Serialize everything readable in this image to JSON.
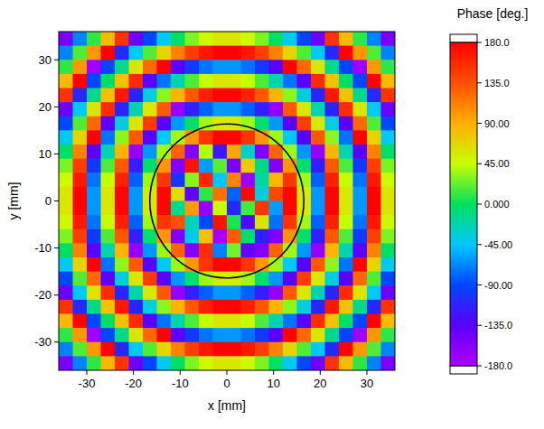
{
  "chart_data": {
    "type": "heatmap",
    "xlabel": "x [mm]",
    "ylabel": "y [mm]",
    "xlim": [
      -36,
      36
    ],
    "ylim": [
      -36,
      36
    ],
    "xticks": [
      -30,
      -20,
      -10,
      0,
      10,
      20,
      30
    ],
    "yticks": [
      -30,
      -20,
      -10,
      0,
      10,
      20,
      30
    ],
    "x": [
      -34.5,
      -31.5,
      -28.5,
      -25.5,
      -22.5,
      -19.5,
      -16.5,
      -13.5,
      -10.5,
      -7.5,
      -4.5,
      -1.5,
      1.5,
      4.5,
      7.5,
      10.5,
      13.5,
      16.5,
      19.5,
      22.5,
      25.5,
      28.5,
      31.5,
      34.5
    ],
    "y": [
      34.5,
      31.5,
      28.5,
      25.5,
      22.5,
      19.5,
      16.5,
      13.5,
      10.5,
      7.5,
      4.5,
      1.5,
      -1.5,
      -4.5,
      -7.5,
      -10.5,
      -13.5,
      -16.5,
      -19.5,
      -22.5,
      -25.5,
      -28.5,
      -31.5,
      -34.5
    ],
    "values": [
      [
        -152,
        -69,
        10,
        84,
        152,
        -145,
        -90,
        -42,
        -3,
        28,
        48,
        59,
        59,
        48,
        28,
        -3,
        -42,
        -90,
        -145,
        152,
        84,
        10,
        -69,
        -152
      ],
      [
        -69,
        18,
        101,
        179,
        -108,
        -42,
        18,
        69,
        112,
        145,
        167,
        179,
        179,
        167,
        145,
        112,
        69,
        18,
        -42,
        -108,
        179,
        101,
        18,
        -69
      ],
      [
        10,
        101,
        -172,
        -90,
        -13,
        59,
        123,
        179,
        -135,
        -99,
        -74,
        -62,
        -62,
        -74,
        -99,
        -135,
        179,
        123,
        59,
        -13,
        -90,
        -172,
        101,
        10
      ],
      [
        84,
        179,
        -90,
        -3,
        80,
        156,
        -135,
        -74,
        -23,
        17,
        44,
        58,
        58,
        44,
        17,
        -23,
        -74,
        -135,
        156,
        80,
        -3,
        -90,
        179,
        84
      ],
      [
        152,
        -108,
        -13,
        80,
        167,
        -111,
        -36,
        31,
        87,
        131,
        162,
        178,
        178,
        162,
        131,
        87,
        31,
        -36,
        -111,
        167,
        80,
        -13,
        -108,
        152
      ],
      [
        -145,
        -42,
        59,
        156,
        -111,
        -23,
        58,
        131,
        -166,
        -116,
        -81,
        -62,
        -62,
        -81,
        -116,
        -166,
        131,
        58,
        -23,
        -111,
        156,
        59,
        -42,
        -145
      ],
      [
        -90,
        18,
        123,
        -135,
        -36,
        58,
        147,
        -133,
        -62,
        -5,
        36,
        57,
        57,
        36,
        -5,
        -62,
        -133,
        147,
        58,
        -36,
        -135,
        123,
        18,
        -90
      ],
      [
        -42,
        69,
        179,
        -74,
        31,
        131,
        -133,
        -44,
        36,
        102,
        151,
        177,
        177,
        151,
        102,
        36,
        -44,
        -133,
        131,
        31,
        -74,
        179,
        69,
        -42
      ],
      [
        -3,
        112,
        -135,
        -23,
        87,
        -166,
        -62,
        36,
        126,
        -156,
        40,
        -120,
        95,
        -30,
        -156,
        126,
        36,
        -62,
        -166,
        87,
        -23,
        -135,
        112,
        -3
      ],
      [
        28,
        145,
        -99,
        17,
        131,
        -116,
        -5,
        102,
        -156,
        170,
        -60,
        20,
        -150,
        75,
        -10,
        -156,
        102,
        -5,
        -116,
        131,
        17,
        -99,
        145,
        28
      ],
      [
        48,
        167,
        -74,
        44,
        162,
        -81,
        36,
        151,
        -100,
        30,
        160,
        -45,
        110,
        -170,
        -20,
        85,
        151,
        36,
        -81,
        162,
        44,
        -74,
        167,
        48
      ],
      [
        59,
        179,
        -62,
        58,
        178,
        -62,
        57,
        177,
        65,
        -140,
        10,
        120,
        -80,
        175,
        -35,
        140,
        177,
        57,
        -62,
        178,
        58,
        -62,
        179,
        59
      ],
      [
        59,
        179,
        -62,
        58,
        178,
        -62,
        57,
        177,
        -15,
        100,
        -165,
        45,
        -110,
        15,
        150,
        -60,
        177,
        57,
        -62,
        178,
        58,
        -62,
        179,
        59
      ],
      [
        48,
        167,
        -74,
        44,
        162,
        -81,
        36,
        151,
        135,
        -25,
        -90,
        170,
        5,
        -130,
        60,
        -75,
        151,
        36,
        -81,
        162,
        44,
        -74,
        167,
        48
      ],
      [
        28,
        145,
        -99,
        17,
        131,
        -116,
        -5,
        102,
        -156,
        -40,
        80,
        -175,
        130,
        -5,
        -115,
        -156,
        102,
        -5,
        -116,
        131,
        17,
        -99,
        145,
        28
      ],
      [
        -3,
        112,
        -135,
        -23,
        87,
        -166,
        -62,
        36,
        126,
        -156,
        155,
        -70,
        25,
        -140,
        -156,
        126,
        36,
        -62,
        -166,
        87,
        -23,
        -135,
        112,
        -3
      ],
      [
        -42,
        69,
        179,
        -74,
        31,
        131,
        -133,
        -44,
        36,
        102,
        151,
        177,
        177,
        151,
        102,
        36,
        -44,
        -133,
        131,
        31,
        -74,
        179,
        69,
        -42
      ],
      [
        -90,
        18,
        123,
        -135,
        -36,
        58,
        147,
        -133,
        -62,
        -5,
        36,
        57,
        57,
        36,
        -5,
        -62,
        -133,
        147,
        58,
        -36,
        -135,
        123,
        18,
        -90
      ],
      [
        -145,
        -42,
        59,
        156,
        -111,
        -23,
        58,
        131,
        -166,
        -116,
        -81,
        -62,
        -62,
        -81,
        -116,
        -166,
        131,
        58,
        -23,
        -111,
        156,
        59,
        -42,
        -145
      ],
      [
        152,
        -108,
        -13,
        80,
        167,
        -111,
        -36,
        31,
        87,
        131,
        162,
        178,
        178,
        162,
        131,
        87,
        31,
        -36,
        -111,
        167,
        80,
        -13,
        -108,
        152
      ],
      [
        84,
        179,
        -90,
        -3,
        80,
        156,
        -135,
        -74,
        -23,
        17,
        44,
        58,
        58,
        44,
        17,
        -23,
        -74,
        -135,
        156,
        80,
        -3,
        -90,
        179,
        84
      ],
      [
        10,
        101,
        -172,
        -90,
        -13,
        59,
        123,
        179,
        -135,
        -99,
        -74,
        -62,
        -62,
        -74,
        -99,
        -135,
        179,
        123,
        59,
        -13,
        -90,
        -172,
        101,
        10
      ],
      [
        -69,
        18,
        101,
        179,
        -108,
        -42,
        18,
        69,
        112,
        145,
        167,
        179,
        179,
        167,
        145,
        112,
        69,
        18,
        -42,
        -108,
        179,
        101,
        18,
        -69
      ],
      [
        -152,
        -69,
        10,
        84,
        152,
        -145,
        -90,
        -42,
        -3,
        28,
        48,
        59,
        59,
        48,
        28,
        -3,
        -42,
        -90,
        -145,
        152,
        84,
        10,
        -69,
        -152
      ]
    ],
    "circle": {
      "cx": 0,
      "cy": 0,
      "r": 16.5
    },
    "colorbar": {
      "title": "Phase [deg.]",
      "range": [
        -180,
        180
      ],
      "ticks": [
        {
          "value": 180,
          "label": "180.0"
        },
        {
          "value": 135,
          "label": "135.0"
        },
        {
          "value": 90,
          "label": "90.00"
        },
        {
          "value": 45,
          "label": "45.00"
        },
        {
          "value": 0,
          "label": "0.000"
        },
        {
          "value": -45,
          "label": "-45.00"
        },
        {
          "value": -90,
          "label": "-90.00"
        },
        {
          "value": -135,
          "label": "-135.0"
        },
        {
          "value": -180,
          "label": "-180.0"
        }
      ]
    }
  }
}
